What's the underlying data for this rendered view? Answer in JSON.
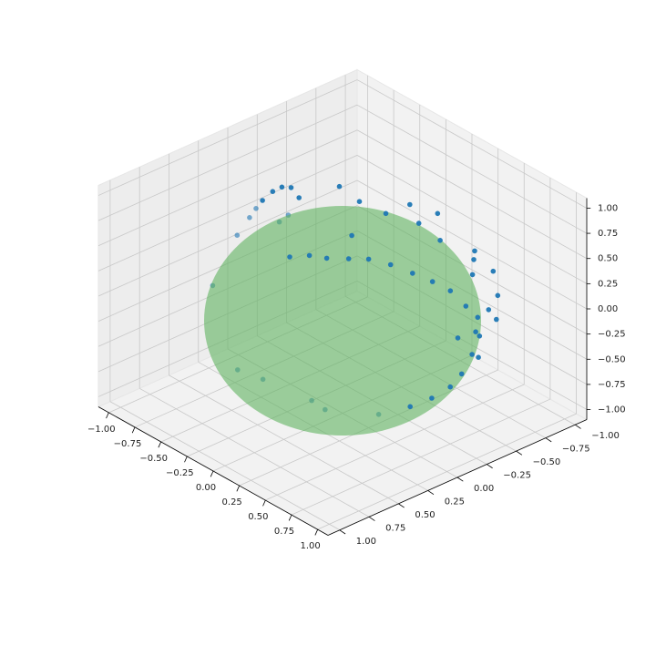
{
  "chart_data": {
    "type": "scatter",
    "subtype": "3d-scatter-with-sphere-surface",
    "title": "",
    "xlabel": "",
    "ylabel": "",
    "zlabel": "",
    "xlim": [
      -1.1,
      1.1
    ],
    "ylim": [
      -1.1,
      1.1
    ],
    "zlim": [
      -1.1,
      1.1
    ],
    "grid": true,
    "x_ticks": [
      "−1.00",
      "−0.75",
      "−0.50",
      "−0.25",
      "0.00",
      "0.25",
      "0.50",
      "0.75",
      "1.00"
    ],
    "y_ticks": [
      "−1.00",
      "−0.75",
      "−0.50",
      "−0.25",
      "0.00",
      "0.25",
      "0.50",
      "0.75",
      "1.00"
    ],
    "z_ticks": [
      "−1.00",
      "−0.75",
      "−0.50",
      "−0.25",
      "0.00",
      "0.25",
      "0.50",
      "0.75",
      "1.00"
    ],
    "surface": {
      "shape": "unit sphere",
      "radius": 1.0,
      "color": "#5fb35f",
      "alpha": 0.6
    },
    "marker_color": "#1f77b4",
    "series": [
      {
        "points": [
          [
            0.12,
            0.56,
            0.82
          ],
          [
            0.22,
            0.48,
            0.85
          ],
          [
            0.32,
            0.42,
            0.85
          ],
          [
            0.42,
            0.32,
            0.85
          ],
          [
            0.5,
            0.22,
            0.84
          ],
          [
            0.6,
            0.12,
            0.79
          ],
          [
            0.7,
            0.02,
            0.71
          ],
          [
            0.78,
            -0.08,
            0.62
          ],
          [
            0.84,
            -0.18,
            0.51
          ],
          [
            0.9,
            -0.26,
            0.35
          ],
          [
            0.95,
            -0.3,
            0.1
          ],
          [
            0.96,
            -0.26,
            -0.1
          ],
          [
            0.95,
            -0.18,
            -0.26
          ],
          [
            0.93,
            -0.1,
            -0.36
          ],
          [
            0.92,
            0.05,
            -0.4
          ],
          [
            0.88,
            0.2,
            -0.43
          ],
          [
            0.8,
            0.4,
            -0.45
          ],
          [
            0.62,
            0.7,
            -0.35
          ],
          [
            0.58,
            0.78,
            -0.24
          ],
          [
            0.3,
            0.95,
            -0.1
          ],
          [
            0.1,
            0.99,
            -0.1
          ],
          [
            -0.3,
            0.85,
            0.44
          ],
          [
            -0.4,
            0.55,
            0.73
          ],
          [
            -0.45,
            0.4,
            0.8
          ],
          [
            -0.5,
            0.3,
            0.81
          ],
          [
            -0.55,
            0.2,
            0.81
          ],
          [
            -0.62,
            0.05,
            0.78
          ],
          [
            -0.7,
            -0.1,
            0.7
          ],
          [
            -0.78,
            -0.25,
            0.57
          ],
          [
            -0.85,
            -0.38,
            0.36
          ],
          [
            -0.92,
            -0.35,
            0.16
          ],
          [
            -0.95,
            -0.3,
            0.1
          ],
          [
            0.35,
            -0.85,
            -0.39
          ],
          [
            0.48,
            -0.75,
            -0.45
          ],
          [
            0.92,
            -0.35,
            -0.2
          ],
          [
            0.98,
            -0.12,
            0.15
          ],
          [
            0.65,
            -0.55,
            0.52
          ],
          [
            0.58,
            -0.62,
            0.53
          ],
          [
            -0.7,
            -0.7,
            -0.1
          ],
          [
            0.2,
            -0.4,
            0.89
          ],
          [
            0.05,
            -0.1,
            0.99
          ],
          [
            0.4,
            -0.3,
            0.87
          ],
          [
            0.55,
            -0.35,
            0.76
          ],
          [
            0.3,
            -0.55,
            0.78
          ],
          [
            -0.2,
            -0.15,
            0.97
          ],
          [
            0.25,
            -0.15,
            0.96
          ],
          [
            0.75,
            -0.45,
            0.48
          ],
          [
            0.85,
            -0.5,
            0.16
          ],
          [
            0.7,
            -0.7,
            -0.13
          ],
          [
            0.5,
            -0.85,
            0.16
          ],
          [
            0.6,
            -0.8,
            0.0
          ]
        ]
      }
    ]
  }
}
